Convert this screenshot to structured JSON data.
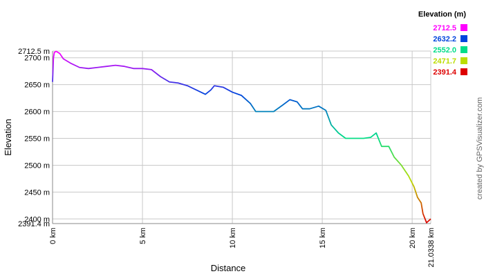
{
  "chart_data": {
    "type": "line",
    "x_label": "Distance",
    "y_label": "Elevation",
    "credit": "created by GPSVisualizer.com",
    "legend": {
      "title": "Elevation (m)",
      "entries": [
        {
          "value": 2712.5,
          "label": "2712.5",
          "color": "#ff00ff"
        },
        {
          "value": 2632.2,
          "label": "2632.2",
          "color": "#0044dd"
        },
        {
          "value": 2552,
          "label": "2552.0",
          "color": "#00dd88"
        },
        {
          "value": 2471.7,
          "label": "2471.7",
          "color": "#bbdd00"
        },
        {
          "value": 2391.4,
          "label": "2391.4",
          "color": "#dd0000"
        }
      ]
    },
    "xlim": [
      0,
      21.0338
    ],
    "ylim": [
      2391.4,
      2712.5
    ],
    "xticks": [
      {
        "value": 0,
        "label": "0 km"
      },
      {
        "value": 5,
        "label": "5 km"
      },
      {
        "value": 10,
        "label": "10 km"
      },
      {
        "value": 15,
        "label": "15 km"
      },
      {
        "value": 20,
        "label": "20 km"
      },
      {
        "value": 21.0338,
        "label": "21.0338 km"
      }
    ],
    "yticks": [
      {
        "value": 2391.4,
        "label": "2391.4 m"
      },
      {
        "value": 2400,
        "label": "2400 m"
      },
      {
        "value": 2450,
        "label": "2450 m"
      },
      {
        "value": 2500,
        "label": "2500 m"
      },
      {
        "value": 2550,
        "label": "2550 m"
      },
      {
        "value": 2600,
        "label": "2600 m"
      },
      {
        "value": 2650,
        "label": "2650 m"
      },
      {
        "value": 2700,
        "label": "2700 m"
      },
      {
        "value": 2712.5,
        "label": "2712.5 m"
      }
    ],
    "grid": true,
    "x": [
      0,
      0.05,
      0.1,
      0.2,
      0.4,
      0.6,
      1.0,
      1.5,
      2.0,
      2.5,
      3.0,
      3.5,
      4.0,
      4.5,
      5.0,
      5.5,
      6.0,
      6.5,
      7.0,
      7.5,
      8.0,
      8.5,
      8.8,
      9.0,
      9.5,
      10.0,
      10.5,
      11.0,
      11.3,
      11.8,
      12.3,
      12.8,
      13.2,
      13.6,
      13.9,
      14.3,
      14.8,
      15.2,
      15.5,
      15.9,
      16.3,
      16.8,
      17.3,
      17.7,
      18.0,
      18.3,
      18.7,
      19.0,
      19.4,
      19.8,
      20.1,
      20.3,
      20.5,
      20.6,
      20.8,
      21.0338
    ],
    "values": [
      2655,
      2700,
      2710,
      2712,
      2708,
      2698,
      2690,
      2682,
      2680,
      2682,
      2684,
      2686,
      2684,
      2680,
      2680,
      2678,
      2665,
      2655,
      2653,
      2648,
      2640,
      2632,
      2640,
      2648,
      2645,
      2636,
      2630,
      2615,
      2600,
      2600,
      2600,
      2612,
      2622,
      2618,
      2605,
      2605,
      2610,
      2602,
      2575,
      2560,
      2550,
      2550,
      2550,
      2552,
      2560,
      2535,
      2535,
      2515,
      2500,
      2480,
      2460,
      2440,
      2430,
      2410,
      2393,
      2400
    ]
  }
}
